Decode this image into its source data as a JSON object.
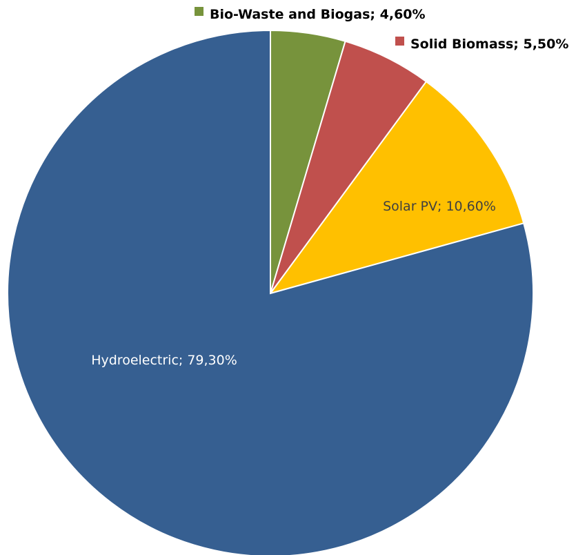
{
  "chart_data": {
    "type": "pie",
    "slices": [
      {
        "name": "Bio-Waste and Biogas",
        "value": 4.6,
        "label": "Bio-Waste and Biogas; 4,60%",
        "color": "#77933C"
      },
      {
        "name": "Solid Biomass",
        "value": 5.5,
        "label": "Solid Biomass; 5,50%",
        "color": "#C0504D"
      },
      {
        "name": "Solar PV",
        "value": 10.6,
        "label": "Solar PV; 10,60%",
        "color": "#FFC000"
      },
      {
        "name": "Hydroelectric",
        "value": 79.3,
        "label": "Hydroelectric; 79,30%",
        "color": "#365F91"
      }
    ],
    "legend": "top"
  }
}
